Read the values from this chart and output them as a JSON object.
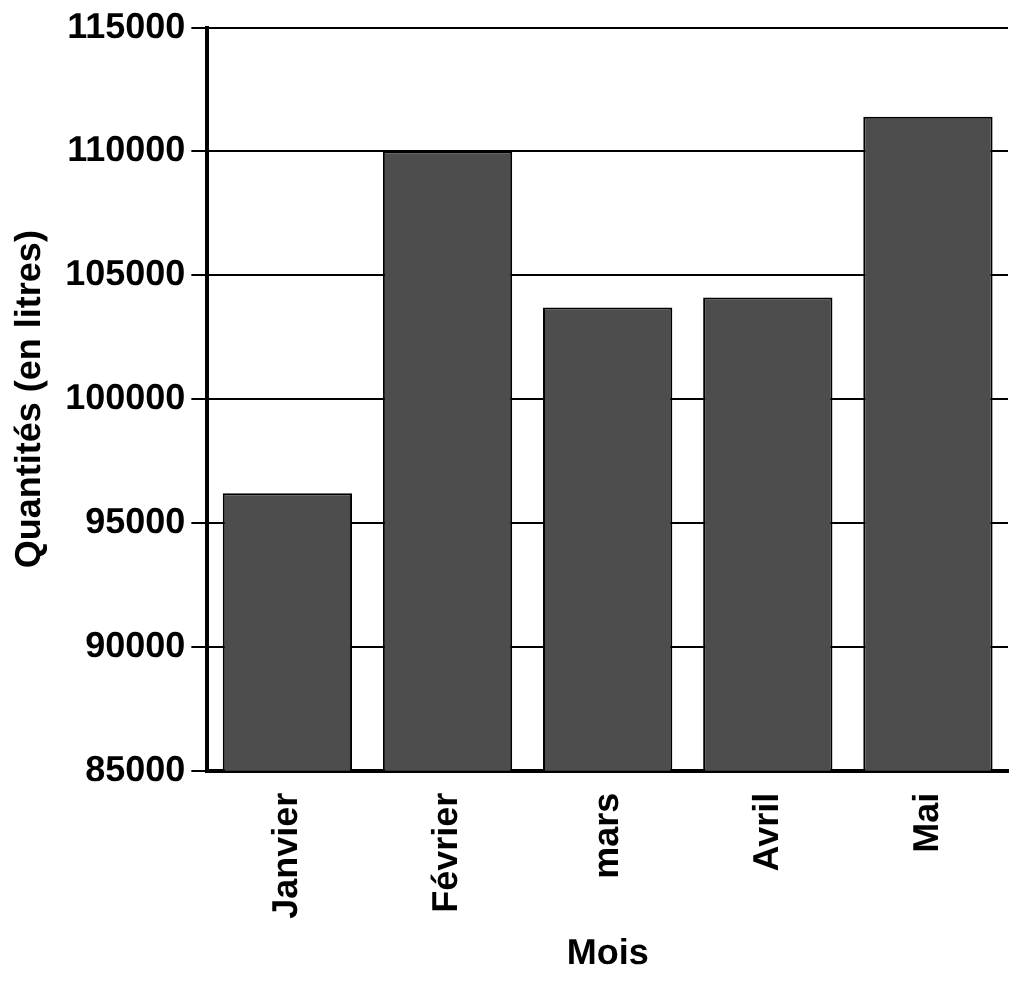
{
  "chart_data": {
    "type": "bar",
    "xlabel": "Mois",
    "ylabel": "Quantités (en litres)",
    "categories": [
      "Janvier",
      "Février",
      "mars",
      "Avril",
      "Mai"
    ],
    "values": [
      96200,
      110000,
      103700,
      104100,
      111400
    ],
    "color": "#4d4d4d",
    "ylim": [
      85000,
      115000
    ],
    "yticks": [
      85000,
      90000,
      95000,
      100000,
      105000,
      110000,
      115000
    ],
    "grid": "y"
  }
}
